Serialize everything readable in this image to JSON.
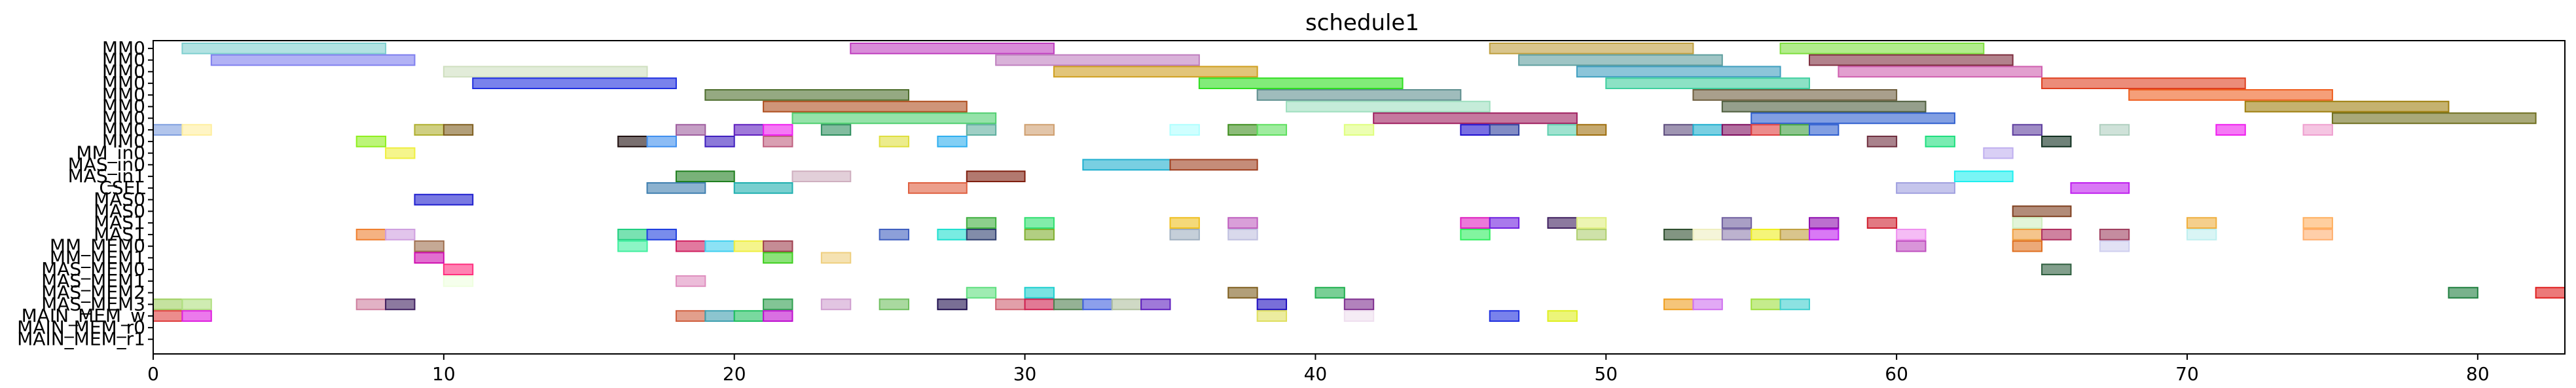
{
  "chart_data": {
    "type": "gantt",
    "title": "schedule1",
    "xlabel": "",
    "ylabel": "",
    "xlim": [
      0,
      83
    ],
    "xticks": [
      0,
      10,
      20,
      30,
      40,
      50,
      60,
      70,
      80
    ],
    "grid": false,
    "legend": "none",
    "rows": [
      "MM0",
      "MM0",
      "MM0",
      "MM0",
      "MM0",
      "MM0",
      "MM0",
      "MM0",
      "MM0",
      "MM_in0",
      "MAS_in0",
      "MAS_in1",
      "CSEL",
      "MAS0",
      "MAS0",
      "MAS1",
      "MAS1",
      "MM_MEM0",
      "MM_MEM1",
      "MAS_MEM0",
      "MAS_MEM1",
      "MAS_MEM2",
      "MAS_MEM3",
      "MAIN_MEM_w",
      "MAIN_MEM_r0",
      "MAIN_MEM_r1"
    ],
    "tasks": [
      {
        "row": 0,
        "start": 1,
        "end": 8,
        "color": "#7fcfcf"
      },
      {
        "row": 0,
        "start": 24,
        "end": 31,
        "color": "#bf3fbf"
      },
      {
        "row": 0,
        "start": 46,
        "end": 53,
        "color": "#bf9f3f"
      },
      {
        "row": 0,
        "start": 56,
        "end": 63,
        "color": "#7fdf3f"
      },
      {
        "row": 1,
        "start": 2,
        "end": 9,
        "color": "#7f7fef"
      },
      {
        "row": 1,
        "start": 29,
        "end": 36,
        "color": "#bf7fbf"
      },
      {
        "row": 1,
        "start": 47,
        "end": 54,
        "color": "#5f9f9f"
      },
      {
        "row": 1,
        "start": 57,
        "end": 64,
        "color": "#7f2f3f"
      },
      {
        "row": 2,
        "start": 10,
        "end": 17,
        "color": "#cfdfbf"
      },
      {
        "row": 2,
        "start": 31,
        "end": 38,
        "color": "#cf9f1f"
      },
      {
        "row": 2,
        "start": 49,
        "end": 56,
        "color": "#3f9fbf"
      },
      {
        "row": 2,
        "start": 58,
        "end": 65,
        "color": "#cf5faf"
      },
      {
        "row": 3,
        "start": 11,
        "end": 18,
        "color": "#1f2fdf"
      },
      {
        "row": 3,
        "start": 36,
        "end": 43,
        "color": "#2fdf1f"
      },
      {
        "row": 3,
        "start": 50,
        "end": 57,
        "color": "#3fcf9f"
      },
      {
        "row": 3,
        "start": 65,
        "end": 72,
        "color": "#df3f1f"
      },
      {
        "row": 4,
        "start": 19,
        "end": 26,
        "color": "#4f6f2f"
      },
      {
        "row": 4,
        "start": 38,
        "end": 45,
        "color": "#5f8f8f"
      },
      {
        "row": 4,
        "start": 53,
        "end": 60,
        "color": "#6f5f3f"
      },
      {
        "row": 4,
        "start": 68,
        "end": 75,
        "color": "#ef5f1f"
      },
      {
        "row": 5,
        "start": 21,
        "end": 28,
        "color": "#af4f1f"
      },
      {
        "row": 5,
        "start": 39,
        "end": 46,
        "color": "#9fdfbf"
      },
      {
        "row": 5,
        "start": 54,
        "end": 61,
        "color": "#4f5f3f"
      },
      {
        "row": 5,
        "start": 72,
        "end": 79,
        "color": "#9f7f0f"
      },
      {
        "row": 6,
        "start": 22,
        "end": 29,
        "color": "#4fcf6f"
      },
      {
        "row": 6,
        "start": 42,
        "end": 49,
        "color": "#9f1f5f"
      },
      {
        "row": 6,
        "start": 55,
        "end": 62,
        "color": "#2f5fcf"
      },
      {
        "row": 6,
        "start": 75,
        "end": 82,
        "color": "#6f6f1f"
      },
      {
        "row": 7,
        "start": 0,
        "end": 1,
        "color": "#7f9fdf"
      },
      {
        "row": 7,
        "start": 1,
        "end": 2,
        "color": "#ffef9f"
      },
      {
        "row": 7,
        "start": 9,
        "end": 10,
        "color": "#afaf2f"
      },
      {
        "row": 7,
        "start": 10,
        "end": 11,
        "color": "#7f5f1f"
      },
      {
        "row": 7,
        "start": 18,
        "end": 19,
        "color": "#9f5f9f"
      },
      {
        "row": 7,
        "start": 20,
        "end": 21,
        "color": "#5f1fbf"
      },
      {
        "row": 7,
        "start": 21,
        "end": 22,
        "color": "#ef1fef"
      },
      {
        "row": 7,
        "start": 23,
        "end": 24,
        "color": "#2f8f5f"
      },
      {
        "row": 7,
        "start": 28,
        "end": 29,
        "color": "#5faf9f"
      },
      {
        "row": 7,
        "start": 30,
        "end": 31,
        "color": "#cf9f6f"
      },
      {
        "row": 7,
        "start": 35,
        "end": 36,
        "color": "#afffff"
      },
      {
        "row": 7,
        "start": 37,
        "end": 38,
        "color": "#3f8f1f"
      },
      {
        "row": 7,
        "start": 38,
        "end": 39,
        "color": "#5fdf5f"
      },
      {
        "row": 7,
        "start": 41,
        "end": 42,
        "color": "#dfff7f"
      },
      {
        "row": 7,
        "start": 45,
        "end": 46,
        "color": "#1f0fcf"
      },
      {
        "row": 7,
        "start": 46,
        "end": 47,
        "color": "#2f3f9f"
      },
      {
        "row": 7,
        "start": 48,
        "end": 49,
        "color": "#5fcfaf"
      },
      {
        "row": 7,
        "start": 49,
        "end": 50,
        "color": "#9f6f0f"
      },
      {
        "row": 7,
        "start": 52,
        "end": 53,
        "color": "#5f4f7f"
      },
      {
        "row": 7,
        "start": 53,
        "end": 54,
        "color": "#1fafcf"
      },
      {
        "row": 7,
        "start": 54,
        "end": 55,
        "color": "#7f0f5f"
      },
      {
        "row": 7,
        "start": 55,
        "end": 56,
        "color": "#df3f3f"
      },
      {
        "row": 7,
        "start": 56,
        "end": 57,
        "color": "#3f9f3f"
      },
      {
        "row": 7,
        "start": 57,
        "end": 58,
        "color": "#2f5fcf"
      },
      {
        "row": 7,
        "start": 64,
        "end": 65,
        "color": "#5f3f9f"
      },
      {
        "row": 7,
        "start": 67,
        "end": 68,
        "color": "#afcfbf"
      },
      {
        "row": 7,
        "start": 71,
        "end": 72,
        "color": "#ef1fef"
      },
      {
        "row": 7,
        "start": 74,
        "end": 75,
        "color": "#ef9fcf"
      },
      {
        "row": 8,
        "start": 7,
        "end": 8,
        "color": "#8fef1f"
      },
      {
        "row": 8,
        "start": 16,
        "end": 17,
        "color": "#1f0f0f"
      },
      {
        "row": 8,
        "start": 17,
        "end": 18,
        "color": "#3f8fef"
      },
      {
        "row": 8,
        "start": 19,
        "end": 20,
        "color": "#3f1fbf"
      },
      {
        "row": 8,
        "start": 21,
        "end": 22,
        "color": "#bf5f7f"
      },
      {
        "row": 8,
        "start": 25,
        "end": 26,
        "color": "#dfdf3f"
      },
      {
        "row": 8,
        "start": 27,
        "end": 28,
        "color": "#2fafef"
      },
      {
        "row": 8,
        "start": 59,
        "end": 60,
        "color": "#6f2f3f"
      },
      {
        "row": 8,
        "start": 61,
        "end": 62,
        "color": "#1fdf7f"
      },
      {
        "row": 8,
        "start": 65,
        "end": 66,
        "color": "#0f2f1f"
      },
      {
        "row": 9,
        "start": 8,
        "end": 9,
        "color": "#efef3f"
      },
      {
        "row": 9,
        "start": 63,
        "end": 64,
        "color": "#bfafef"
      },
      {
        "row": 10,
        "start": 32,
        "end": 35,
        "color": "#1fafcf"
      },
      {
        "row": 10,
        "start": 35,
        "end": 38,
        "color": "#9f3f1f"
      },
      {
        "row": 11,
        "start": 18,
        "end": 20,
        "color": "#1f7f1f"
      },
      {
        "row": 11,
        "start": 22,
        "end": 24,
        "color": "#cfafbf"
      },
      {
        "row": 11,
        "start": 28,
        "end": 30,
        "color": "#7f1f0f"
      },
      {
        "row": 11,
        "start": 62,
        "end": 64,
        "color": "#1fefef"
      },
      {
        "row": 12,
        "start": 17,
        "end": 19,
        "color": "#3f7faf"
      },
      {
        "row": 12,
        "start": 20,
        "end": 22,
        "color": "#1fafaf"
      },
      {
        "row": 12,
        "start": 26,
        "end": 28,
        "color": "#df5f3f"
      },
      {
        "row": 12,
        "start": 60,
        "end": 62,
        "color": "#9f9fdf"
      },
      {
        "row": 12,
        "start": 66,
        "end": 68,
        "color": "#bf1fef"
      },
      {
        "row": 13,
        "start": 9,
        "end": 11,
        "color": "#1f1fcf"
      },
      {
        "row": 14,
        "start": 64,
        "end": 66,
        "color": "#7f3f1f"
      },
      {
        "row": 15,
        "start": 28,
        "end": 29,
        "color": "#3faf3f"
      },
      {
        "row": 15,
        "start": 30,
        "end": 31,
        "color": "#2fdf6f"
      },
      {
        "row": 15,
        "start": 35,
        "end": 36,
        "color": "#efbf1f"
      },
      {
        "row": 15,
        "start": 37,
        "end": 38,
        "color": "#bf5fbf"
      },
      {
        "row": 15,
        "start": 45,
        "end": 46,
        "color": "#df1fbf"
      },
      {
        "row": 15,
        "start": 46,
        "end": 47,
        "color": "#6f1fdf"
      },
      {
        "row": 15,
        "start": 48,
        "end": 49,
        "color": "#3f1f5f"
      },
      {
        "row": 15,
        "start": 49,
        "end": 50,
        "color": "#dfef7f"
      },
      {
        "row": 15,
        "start": 54,
        "end": 55,
        "color": "#6f5f9f"
      },
      {
        "row": 15,
        "start": 57,
        "end": 58,
        "color": "#8f0faf"
      },
      {
        "row": 15,
        "start": 59,
        "end": 60,
        "color": "#cf1f2f"
      },
      {
        "row": 15,
        "start": 64,
        "end": 65,
        "color": "#cfefbf"
      },
      {
        "row": 15,
        "start": 70,
        "end": 71,
        "color": "#efaf3f"
      },
      {
        "row": 15,
        "start": 74,
        "end": 75,
        "color": "#ffaf5f"
      },
      {
        "row": 16,
        "start": 7,
        "end": 8,
        "color": "#ef7f2f"
      },
      {
        "row": 16,
        "start": 8,
        "end": 9,
        "color": "#cf9fdf"
      },
      {
        "row": 16,
        "start": 16,
        "end": 17,
        "color": "#1fcf7f"
      },
      {
        "row": 16,
        "start": 17,
        "end": 18,
        "color": "#1f3fdf"
      },
      {
        "row": 16,
        "start": 25,
        "end": 26,
        "color": "#3f5fbf"
      },
      {
        "row": 16,
        "start": 27,
        "end": 28,
        "color": "#1fdfcf"
      },
      {
        "row": 16,
        "start": 28,
        "end": 29,
        "color": "#2f3f6f"
      },
      {
        "row": 16,
        "start": 30,
        "end": 31,
        "color": "#7faf2f"
      },
      {
        "row": 16,
        "start": 35,
        "end": 36,
        "color": "#9fafbf"
      },
      {
        "row": 16,
        "start": 37,
        "end": 38,
        "color": "#bfbfdf"
      },
      {
        "row": 16,
        "start": 45,
        "end": 46,
        "color": "#2fef5f"
      },
      {
        "row": 16,
        "start": 49,
        "end": 50,
        "color": "#afcf6f"
      },
      {
        "row": 16,
        "start": 52,
        "end": 53,
        "color": "#2f4f2f"
      },
      {
        "row": 16,
        "start": 53,
        "end": 54,
        "color": "#efefbf"
      },
      {
        "row": 16,
        "start": 54,
        "end": 55,
        "color": "#8f7faf"
      },
      {
        "row": 16,
        "start": 55,
        "end": 56,
        "color": "#efef1f"
      },
      {
        "row": 16,
        "start": 56,
        "end": 57,
        "color": "#bf9f3f"
      },
      {
        "row": 16,
        "start": 57,
        "end": 58,
        "color": "#bf1fef"
      },
      {
        "row": 16,
        "start": 60,
        "end": 61,
        "color": "#ef8fef"
      },
      {
        "row": 16,
        "start": 64,
        "end": 65,
        "color": "#ef9f3f"
      },
      {
        "row": 16,
        "start": 65,
        "end": 66,
        "color": "#af2f5f"
      },
      {
        "row": 16,
        "start": 67,
        "end": 68,
        "color": "#9f3f5f"
      },
      {
        "row": 16,
        "start": 70,
        "end": 71,
        "color": "#bfefef"
      },
      {
        "row": 16,
        "start": 74,
        "end": 75,
        "color": "#ffaf6f"
      },
      {
        "row": 17,
        "start": 9,
        "end": 10,
        "color": "#9f6f4f"
      },
      {
        "row": 17,
        "start": 16,
        "end": 17,
        "color": "#3fef9f"
      },
      {
        "row": 17,
        "start": 18,
        "end": 19,
        "color": "#cf1f5f"
      },
      {
        "row": 17,
        "start": 19,
        "end": 20,
        "color": "#3fcfef"
      },
      {
        "row": 17,
        "start": 20,
        "end": 21,
        "color": "#efef3f"
      },
      {
        "row": 17,
        "start": 21,
        "end": 22,
        "color": "#9f3f4f"
      },
      {
        "row": 17,
        "start": 60,
        "end": 61,
        "color": "#bf4fbf"
      },
      {
        "row": 17,
        "start": 64,
        "end": 65,
        "color": "#df6f1f"
      },
      {
        "row": 17,
        "start": 67,
        "end": 68,
        "color": "#cfcfef"
      },
      {
        "row": 18,
        "start": 9,
        "end": 10,
        "color": "#cf0faf"
      },
      {
        "row": 18,
        "start": 21,
        "end": 22,
        "color": "#3fcf1f"
      },
      {
        "row": 18,
        "start": 23,
        "end": 24,
        "color": "#efcf7f"
      },
      {
        "row": 19,
        "start": 10,
        "end": 11,
        "color": "#ff2f7f"
      },
      {
        "row": 19,
        "start": 65,
        "end": 66,
        "color": "#2f5f3f"
      },
      {
        "row": 20,
        "start": 10,
        "end": 11,
        "color": "#efffdf"
      },
      {
        "row": 20,
        "start": 18,
        "end": 19,
        "color": "#df8fbf"
      },
      {
        "row": 21,
        "start": 28,
        "end": 29,
        "color": "#5fdf7f"
      },
      {
        "row": 21,
        "start": 30,
        "end": 31,
        "color": "#1fcfcf"
      },
      {
        "row": 21,
        "start": 37,
        "end": 38,
        "color": "#7f5f1f"
      },
      {
        "row": 21,
        "start": 40,
        "end": 41,
        "color": "#1faf4f"
      },
      {
        "row": 21,
        "start": 79,
        "end": 80,
        "color": "#1f7f3f"
      },
      {
        "row": 21,
        "start": 82,
        "end": 83,
        "color": "#df1f1f"
      },
      {
        "row": 22,
        "start": 0,
        "end": 1,
        "color": "#9fcf5f"
      },
      {
        "row": 22,
        "start": 1,
        "end": 2,
        "color": "#afdf7f"
      },
      {
        "row": 22,
        "start": 7,
        "end": 8,
        "color": "#cf7f9f"
      },
      {
        "row": 22,
        "start": 8,
        "end": 9,
        "color": "#3f1f5f"
      },
      {
        "row": 22,
        "start": 21,
        "end": 22,
        "color": "#2f9f4f"
      },
      {
        "row": 22,
        "start": 23,
        "end": 24,
        "color": "#cf9fcf"
      },
      {
        "row": 22,
        "start": 25,
        "end": 26,
        "color": "#6fbf5f"
      },
      {
        "row": 22,
        "start": 27,
        "end": 28,
        "color": "#1f0f4f"
      },
      {
        "row": 22,
        "start": 29,
        "end": 30,
        "color": "#cf5f6f"
      },
      {
        "row": 22,
        "start": 30,
        "end": 31,
        "color": "#cf1f4f"
      },
      {
        "row": 22,
        "start": 31,
        "end": 32,
        "color": "#4f7f4f"
      },
      {
        "row": 22,
        "start": 32,
        "end": 33,
        "color": "#3f5fdf"
      },
      {
        "row": 22,
        "start": 33,
        "end": 34,
        "color": "#afbf9f"
      },
      {
        "row": 22,
        "start": 34,
        "end": 35,
        "color": "#5f1fbf"
      },
      {
        "row": 22,
        "start": 38,
        "end": 39,
        "color": "#1f0fbf"
      },
      {
        "row": 22,
        "start": 41,
        "end": 42,
        "color": "#7f2f8f"
      },
      {
        "row": 22,
        "start": 52,
        "end": 53,
        "color": "#ef9f1f"
      },
      {
        "row": 22,
        "start": 53,
        "end": 54,
        "color": "#cf6fef"
      },
      {
        "row": 22,
        "start": 55,
        "end": 56,
        "color": "#9fdf3f"
      },
      {
        "row": 22,
        "start": 56,
        "end": 57,
        "color": "#3fcfcf"
      },
      {
        "row": 23,
        "start": 0,
        "end": 1,
        "color": "#df3f3f"
      },
      {
        "row": 23,
        "start": 1,
        "end": 2,
        "color": "#df1fdf"
      },
      {
        "row": 23,
        "start": 18,
        "end": 19,
        "color": "#cf5f3f"
      },
      {
        "row": 23,
        "start": 19,
        "end": 20,
        "color": "#3f9faf"
      },
      {
        "row": 23,
        "start": 20,
        "end": 21,
        "color": "#1fbf5f"
      },
      {
        "row": 23,
        "start": 21,
        "end": 22,
        "color": "#bf0fcf"
      },
      {
        "row": 23,
        "start": 38,
        "end": 39,
        "color": "#dfdf5f"
      },
      {
        "row": 23,
        "start": 41,
        "end": 42,
        "color": "#efdfef"
      },
      {
        "row": 23,
        "start": 46,
        "end": 47,
        "color": "#1f2fdf"
      },
      {
        "row": 23,
        "start": 48,
        "end": 49,
        "color": "#dfef1f"
      }
    ]
  }
}
